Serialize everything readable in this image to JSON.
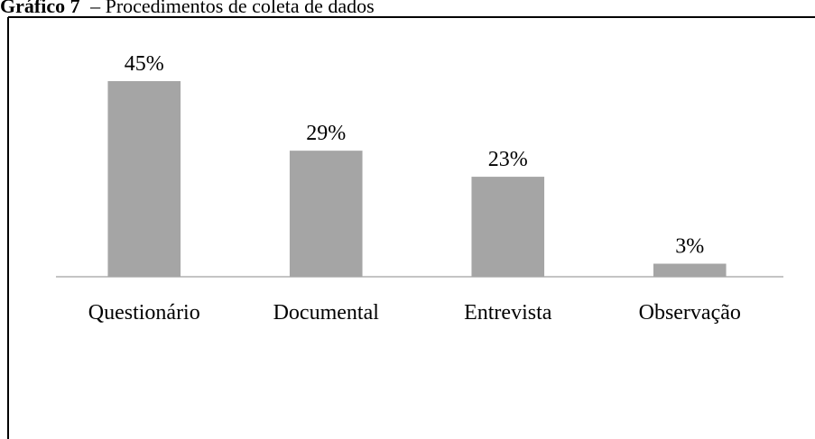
{
  "chart_data": {
    "type": "bar",
    "title_prefix": "Gráfico 7",
    "title": "– Procedimentos de coleta de dados",
    "categories": [
      "Questionário",
      "Documental",
      "Entrevista",
      "Observação"
    ],
    "values": [
      45,
      29,
      23,
      3
    ],
    "value_labels": [
      "45%",
      "29%",
      "23%",
      "3%"
    ],
    "color": "#a5a5a5"
  }
}
